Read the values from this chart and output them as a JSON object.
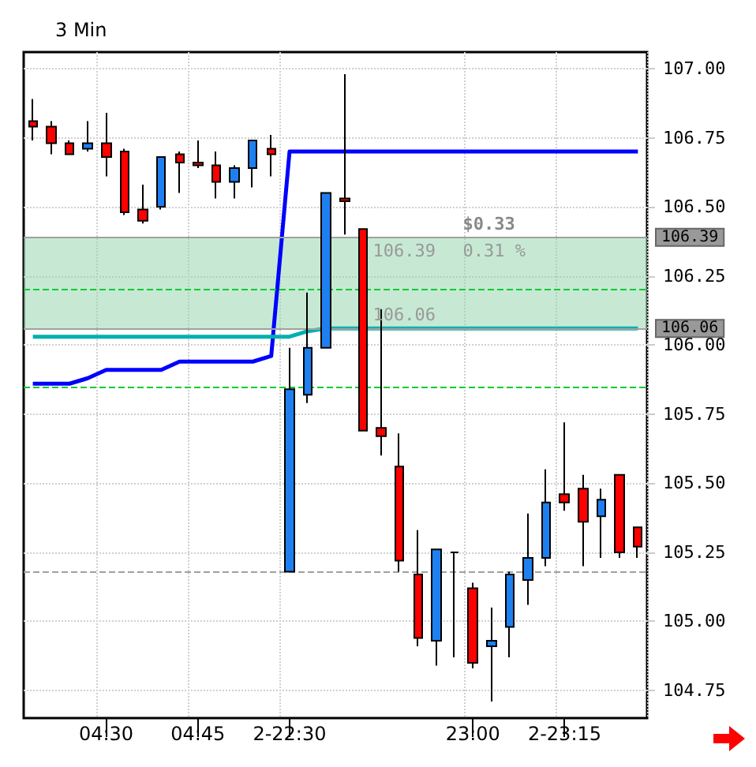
{
  "chart_data": {
    "type": "candlestick",
    "title": "3 Min",
    "categories": [
      null,
      null,
      null,
      null,
      "04:30",
      null,
      null,
      null,
      null,
      "04:45",
      null,
      null,
      null,
      null,
      "2-22:30",
      null,
      null,
      null,
      null,
      null,
      null,
      null,
      null,
      null,
      "23:00",
      null,
      null,
      null,
      null,
      "2-23:15",
      null,
      null,
      null,
      null
    ],
    "ohlc": [
      [
        106.81,
        106.89,
        106.74,
        106.79
      ],
      [
        106.79,
        106.81,
        106.69,
        106.73
      ],
      [
        106.73,
        106.74,
        106.69,
        106.69
      ],
      [
        106.71,
        106.81,
        106.7,
        106.73
      ],
      [
        106.73,
        106.84,
        106.61,
        106.68
      ],
      [
        106.7,
        106.71,
        106.47,
        106.48
      ],
      [
        106.49,
        106.58,
        106.44,
        106.45
      ],
      [
        106.5,
        106.68,
        106.49,
        106.68
      ],
      [
        106.69,
        106.7,
        106.55,
        106.66
      ],
      [
        106.66,
        106.74,
        106.64,
        106.65
      ],
      [
        106.65,
        106.7,
        106.53,
        106.59
      ],
      [
        106.59,
        106.65,
        106.53,
        106.64
      ],
      [
        106.64,
        106.74,
        106.57,
        106.74
      ],
      [
        106.71,
        106.76,
        106.61,
        106.69
      ],
      [
        105.18,
        105.99,
        105.18,
        105.84
      ],
      [
        105.82,
        106.19,
        105.79,
        105.99
      ],
      [
        105.99,
        106.55,
        105.99,
        106.55
      ],
      [
        106.53,
        106.98,
        106.4,
        106.52
      ],
      [
        106.42,
        106.42,
        105.69,
        105.69
      ],
      [
        105.7,
        106.13,
        105.6,
        105.67
      ],
      [
        105.56,
        105.68,
        105.18,
        105.22
      ],
      [
        105.17,
        105.33,
        104.91,
        104.94
      ],
      [
        104.93,
        105.26,
        104.84,
        105.26
      ],
      [
        105.25,
        105.25,
        104.87,
        105.25
      ],
      [
        105.12,
        105.14,
        104.83,
        104.85
      ],
      [
        104.91,
        105.05,
        104.71,
        104.93
      ],
      [
        104.98,
        105.18,
        104.87,
        105.17
      ],
      [
        105.15,
        105.39,
        105.06,
        105.23
      ],
      [
        105.23,
        105.55,
        105.2,
        105.43
      ],
      [
        105.46,
        105.72,
        105.4,
        105.43
      ],
      [
        105.48,
        105.53,
        105.2,
        105.36
      ],
      [
        105.38,
        105.48,
        105.23,
        105.44
      ],
      [
        105.53,
        105.53,
        105.23,
        105.25
      ],
      [
        105.34,
        105.34,
        105.23,
        105.27
      ]
    ],
    "series": [
      {
        "type": "line",
        "color": "#0000ff",
        "values": [
          105.86,
          105.86,
          105.86,
          105.88,
          105.91,
          105.91,
          105.91,
          105.91,
          105.94,
          105.94,
          105.94,
          105.94,
          105.94,
          105.96,
          106.7,
          106.7,
          106.7,
          106.7,
          106.7,
          106.7,
          106.7,
          106.7,
          106.7,
          106.7,
          106.7,
          106.7,
          106.7,
          106.7,
          106.7,
          106.7,
          106.7,
          106.7,
          106.7,
          106.7
        ]
      },
      {
        "type": "line",
        "color": "#00b0b0",
        "values": [
          106.03,
          106.03,
          106.03,
          106.03,
          106.03,
          106.03,
          106.03,
          106.03,
          106.03,
          106.03,
          106.03,
          106.03,
          106.03,
          106.03,
          106.03,
          106.05,
          106.06,
          106.06,
          106.06,
          106.06,
          106.06,
          106.06,
          106.06,
          106.06,
          106.06,
          106.06,
          106.06,
          106.06,
          106.06,
          106.06,
          106.06,
          106.06,
          106.06,
          106.06
        ]
      }
    ],
    "ylim": [
      104.65,
      107.06
    ],
    "yticks": [
      {
        "value": 104.75,
        "label": "104.75"
      },
      {
        "value": 105,
        "label": "105.00"
      },
      {
        "value": 105.25,
        "label": "105.25"
      },
      {
        "value": 105.5,
        "label": "105.50"
      },
      {
        "value": 105.75,
        "label": "105.75"
      },
      {
        "value": 106,
        "label": "106.00"
      },
      {
        "value": 106.25,
        "label": "106.25"
      },
      {
        "value": 106.5,
        "label": "106.50"
      },
      {
        "value": 106.75,
        "label": "106.75"
      },
      {
        "value": 107,
        "label": "107.00"
      }
    ],
    "ref_lines": [
      {
        "axis": "y",
        "value": 106.2,
        "color": "#00cc33",
        "line_style": "dashed"
      },
      {
        "axis": "y",
        "value": 105.85,
        "color": "#00cc33",
        "line_style": "dashed"
      },
      {
        "axis": "y",
        "value": 105.18,
        "color": "#a0a0a0",
        "line_style": "dashed"
      },
      {
        "axis": "y",
        "value": 106.39,
        "label": "106.39",
        "color": "#a0a0a0",
        "line_style": "solid"
      },
      {
        "axis": "y",
        "value": 106.06,
        "label": "106.06",
        "color": "#a0a0a0",
        "line_style": "solid"
      }
    ],
    "bands": [
      {
        "axis": "y",
        "from": 106.06,
        "to": 106.39,
        "color": "#8fd3a8"
      }
    ],
    "annotations": [
      "$0.33",
      "106.39",
      "0.31 %",
      "106.06"
    ],
    "grid": true
  }
}
